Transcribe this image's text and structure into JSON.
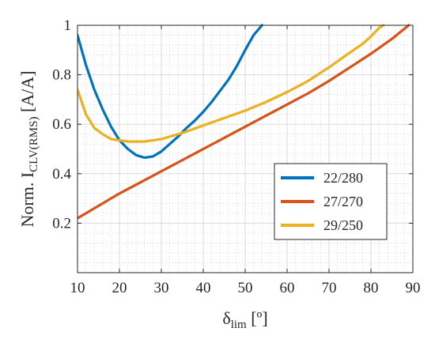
{
  "chart_data": {
    "type": "line",
    "title": "",
    "xlabel": {
      "base": "δ",
      "sub": "lim",
      "unit": " [º]"
    },
    "ylabel": {
      "base": "Norm. I",
      "sub": "CLV(RMS)",
      "unit": " [A/A]"
    },
    "xlim": [
      10,
      90
    ],
    "ylim": [
      0,
      1
    ],
    "xticks": [
      "10",
      "20",
      "30",
      "40",
      "50",
      "60",
      "70",
      "80",
      "90"
    ],
    "yticks": [
      "0.2",
      "0.4",
      "0.6",
      "0.8",
      "1"
    ],
    "grid": "major and minor (dotted)",
    "legend_position": "bottom-right",
    "series": [
      {
        "name": "22/280",
        "color": "#0072BD",
        "x": [
          10,
          12,
          14,
          16,
          18,
          20,
          22,
          24,
          26,
          28,
          30,
          32,
          34,
          36,
          38,
          40,
          42,
          44,
          46,
          48,
          50,
          52,
          54
        ],
        "y": [
          0.96,
          0.84,
          0.74,
          0.66,
          0.59,
          0.535,
          0.5,
          0.475,
          0.465,
          0.47,
          0.49,
          0.52,
          0.55,
          0.585,
          0.615,
          0.65,
          0.69,
          0.735,
          0.78,
          0.835,
          0.9,
          0.96,
          1.0
        ]
      },
      {
        "name": "27/270",
        "color": "#D95319",
        "x": [
          10,
          15,
          20,
          25,
          30,
          35,
          40,
          45,
          50,
          55,
          60,
          65,
          70,
          75,
          80,
          85,
          89
        ],
        "y": [
          0.22,
          0.27,
          0.32,
          0.365,
          0.41,
          0.455,
          0.5,
          0.545,
          0.59,
          0.635,
          0.68,
          0.725,
          0.775,
          0.83,
          0.885,
          0.945,
          1.0
        ]
      },
      {
        "name": "29/250",
        "color": "#EDB120",
        "x": [
          10,
          12,
          14,
          16,
          18,
          20,
          22,
          24,
          26,
          28,
          30,
          35,
          40,
          45,
          50,
          55,
          60,
          65,
          70,
          75,
          78,
          80,
          82,
          83
        ],
        "y": [
          0.74,
          0.64,
          0.585,
          0.56,
          0.54,
          0.535,
          0.53,
          0.53,
          0.53,
          0.535,
          0.54,
          0.565,
          0.595,
          0.625,
          0.655,
          0.69,
          0.73,
          0.775,
          0.83,
          0.89,
          0.925,
          0.955,
          0.99,
          1.0
        ]
      }
    ]
  }
}
